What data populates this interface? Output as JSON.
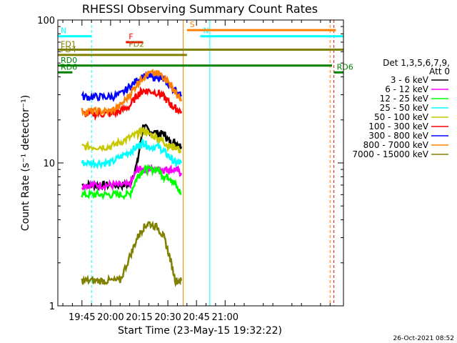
{
  "chart_data": {
    "type": "line",
    "title": "RHESSI Observing Summary Count Rates",
    "xlabel": "Start Time (23-May-15 19:32:22)",
    "ylabel": "Count Rate (s⁻¹ detector⁻¹)",
    "yscale": "log",
    "ylim": [
      1,
      100
    ],
    "xlim": [
      "19:32:22",
      "22:02:00"
    ],
    "x_ticks": [
      "19:45",
      "20:00",
      "20:15",
      "20:30",
      "20:45",
      "21:00"
    ],
    "y_ticks": [
      "1",
      "10",
      "100"
    ],
    "timestamp": "26-Oct-2021 08:52",
    "legend": {
      "header_line1": "Det 1,3,5,6,7,9,",
      "header_line2": "Att 0",
      "placement": "right"
    },
    "series": [
      {
        "name": "3 - 6 keV",
        "color": "#000000",
        "x": [
          "19:45",
          "19:50",
          "19:55",
          "20:00",
          "20:05",
          "20:10",
          "20:14",
          "20:17",
          "20:20",
          "20:25",
          "20:28",
          "20:31",
          "20:34",
          "20:37"
        ],
        "values": [
          7,
          7,
          7,
          7,
          7,
          7,
          10,
          18,
          17,
          16,
          16,
          14,
          14,
          13
        ]
      },
      {
        "name": "6 - 12 keV",
        "color": "#ff00ff",
        "x": [
          "19:45",
          "19:50",
          "19:55",
          "20:00",
          "20:05",
          "20:10",
          "20:14",
          "20:17",
          "20:20",
          "20:25",
          "20:28",
          "20:31",
          "20:34",
          "20:37"
        ],
        "values": [
          7,
          7,
          7,
          7,
          7,
          7,
          9,
          9,
          9,
          9,
          9,
          9,
          9,
          8.5
        ]
      },
      {
        "name": "12 - 25 keV",
        "color": "#00ff00",
        "x": [
          "19:45",
          "19:50",
          "19:55",
          "20:00",
          "20:05",
          "20:10",
          "20:14",
          "20:17",
          "20:20",
          "20:25",
          "20:28",
          "20:31",
          "20:34",
          "20:37"
        ],
        "values": [
          6,
          6,
          6,
          6,
          6,
          6,
          8,
          9,
          9,
          9,
          8,
          8,
          7,
          6
        ]
      },
      {
        "name": "25 - 50 keV",
        "color": "#00ffff",
        "x": [
          "19:45",
          "19:50",
          "19:55",
          "20:00",
          "20:05",
          "20:10",
          "20:14",
          "20:17",
          "20:20",
          "20:25",
          "20:28",
          "20:31",
          "20:34",
          "20:37"
        ],
        "values": [
          10,
          10,
          10,
          10,
          11,
          12,
          13,
          14,
          13,
          13,
          12,
          11,
          10,
          10
        ]
      },
      {
        "name": "50 - 100 keV",
        "color": "#c8c800",
        "x": [
          "19:45",
          "19:50",
          "19:55",
          "20:00",
          "20:05",
          "20:10",
          "20:14",
          "20:17",
          "20:20",
          "20:25",
          "20:28",
          "20:31",
          "20:34",
          "20:37"
        ],
        "values": [
          13,
          13,
          13,
          13,
          14,
          15,
          16,
          17,
          16,
          15,
          14,
          13,
          13,
          12
        ]
      },
      {
        "name": "100 - 300 keV",
        "color": "#ff0000",
        "x": [
          "19:45",
          "19:50",
          "19:55",
          "20:00",
          "20:05",
          "20:10",
          "20:14",
          "20:17",
          "20:20",
          "20:25",
          "20:28",
          "20:31",
          "20:34",
          "20:37"
        ],
        "values": [
          22,
          22,
          22,
          22,
          23,
          25,
          30,
          32,
          32,
          31,
          29,
          26,
          24,
          23
        ]
      },
      {
        "name": "300 - 800 keV",
        "color": "#0000ff",
        "x": [
          "19:45",
          "19:50",
          "19:55",
          "20:00",
          "20:05",
          "20:10",
          "20:14",
          "20:17",
          "20:20",
          "20:25",
          "20:28",
          "20:31",
          "20:34",
          "20:37"
        ],
        "values": [
          29,
          29,
          29,
          29,
          30,
          34,
          38,
          40,
          40,
          40,
          38,
          35,
          32,
          30
        ]
      },
      {
        "name": "800 - 7000 keV",
        "color": "#ff8000",
        "x": [
          "19:45",
          "19:50",
          "19:55",
          "20:00",
          "20:05",
          "20:10",
          "20:14",
          "20:17",
          "20:20",
          "20:25",
          "20:28",
          "20:31",
          "20:34",
          "20:37"
        ],
        "values": [
          23,
          23,
          23,
          23,
          25,
          30,
          36,
          40,
          42,
          42,
          40,
          36,
          31,
          27
        ]
      },
      {
        "name": "7000 - 15000 keV",
        "color": "#808000",
        "x": [
          "19:45",
          "19:50",
          "19:55",
          "20:00",
          "20:05",
          "20:10",
          "20:14",
          "20:17",
          "20:20",
          "20:25",
          "20:28",
          "20:31",
          "20:34",
          "20:37"
        ],
        "values": [
          1.5,
          1.5,
          1.5,
          1.5,
          1.5,
          2.2,
          3,
          3.5,
          3.8,
          3.5,
          3,
          2.2,
          1.5,
          1.5
        ]
      }
    ],
    "markers": [
      {
        "label": "N",
        "color": "#00ffff",
        "y": 77,
        "from": "19:32:22",
        "to": "19:50"
      },
      {
        "label": "N",
        "color": "#00ffff",
        "y": 77,
        "from": "20:47",
        "to": "22:02"
      },
      {
        "label": "F",
        "color": "#ff0000",
        "y": 70,
        "from": "20:08",
        "to": "20:17"
      },
      {
        "label": "S",
        "color": "#ff8000",
        "y": 85,
        "from": "20:40",
        "to": "21:58"
      },
      {
        "label": "FD1",
        "color": "#808000",
        "y": 62,
        "from": "19:32:22",
        "to": "22:02"
      },
      {
        "label": "FD2",
        "color": "#808000",
        "y": 62,
        "from": "20:08",
        "to": "20:30"
      },
      {
        "label": "FD4",
        "color": "#808000",
        "y": 57,
        "from": "19:32:22",
        "to": "20:40"
      },
      {
        "label": "RD0",
        "color": "#008000",
        "y": 48,
        "from": "19:32:22",
        "to": "21:56"
      },
      {
        "label": "RD6",
        "color": "#008000",
        "y": 43,
        "from": "19:32:22",
        "to": "19:40"
      },
      {
        "label": "RD6",
        "color": "#008000",
        "y": 43,
        "from": "21:57",
        "to": "22:02"
      }
    ],
    "vertical_lines": [
      {
        "time": "19:32:22",
        "color": "#00ffff",
        "style": "solid"
      },
      {
        "time": "19:50",
        "color": "#00ffff",
        "style": "dashed"
      },
      {
        "time": "20:38",
        "color": "#ff8000",
        "style": "solid"
      },
      {
        "time": "20:52",
        "color": "#00ffff",
        "style": "solid"
      },
      {
        "time": "21:55",
        "color": "#ff8000",
        "style": "dashed"
      },
      {
        "time": "21:57",
        "color": "#ff0000",
        "style": "dashed"
      }
    ]
  }
}
